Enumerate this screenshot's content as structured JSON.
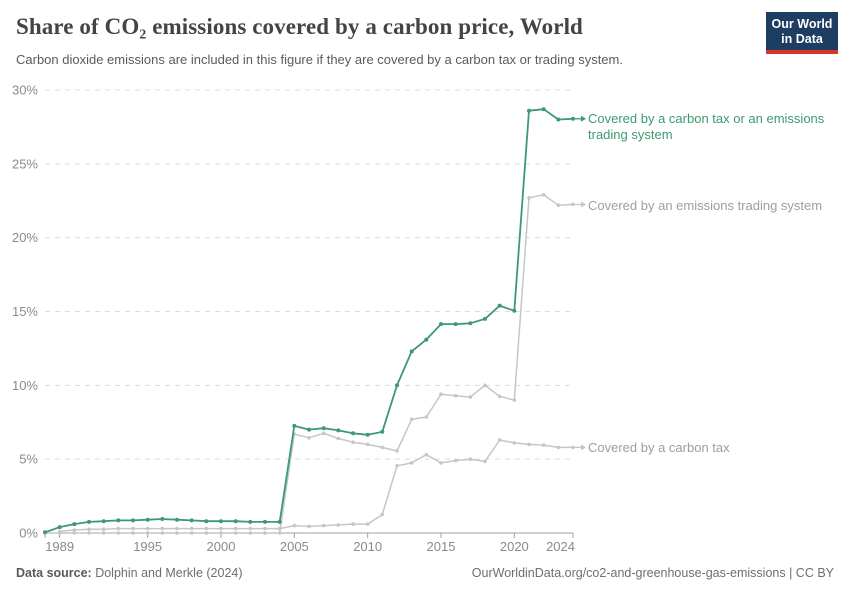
{
  "header": {
    "title": "Share of CO₂ emissions covered by a carbon price, World",
    "subtitle": "Carbon dioxide emissions are included in this figure if they are covered by a carbon tax or trading system.",
    "logo": {
      "line1": "Our World",
      "line2": "in Data",
      "bg_color": "#1d3d63",
      "accent_color": "#d7352c"
    }
  },
  "chart_data": {
    "type": "line",
    "title": "Share of CO₂ emissions covered by a carbon price, World",
    "x": [
      1988,
      1989,
      1990,
      1991,
      1992,
      1993,
      1994,
      1995,
      1996,
      1997,
      1998,
      1999,
      2000,
      2001,
      2002,
      2003,
      2004,
      2005,
      2006,
      2007,
      2008,
      2009,
      2010,
      2011,
      2012,
      2013,
      2014,
      2015,
      2016,
      2017,
      2018,
      2019,
      2020,
      2021,
      2022,
      2023,
      2024
    ],
    "series": [
      {
        "name": "Covered by a carbon tax or an emissions trading system",
        "color": "#3d9a70",
        "label_color": "#3d9a70",
        "values": [
          0.05,
          0.4,
          0.6,
          0.75,
          0.8,
          0.85,
          0.85,
          0.9,
          0.95,
          0.9,
          0.85,
          0.8,
          0.8,
          0.8,
          0.75,
          0.75,
          0.75,
          7.25,
          7.0,
          7.1,
          6.95,
          6.75,
          6.65,
          6.85,
          10.0,
          12.3,
          13.1,
          14.15,
          14.15,
          14.2,
          14.5,
          15.4,
          15.05,
          28.6,
          28.7,
          28.0,
          28.05
        ]
      },
      {
        "name": "Covered by an emissions trading system",
        "color": "#c6c6c6",
        "label_color": "#9e9e9e",
        "values": [
          0,
          0,
          0,
          0,
          0,
          0,
          0,
          0,
          0,
          0,
          0,
          0,
          0,
          0,
          0,
          0,
          0,
          6.7,
          6.45,
          6.75,
          6.4,
          6.15,
          6.0,
          5.8,
          5.55,
          7.7,
          7.85,
          9.4,
          9.3,
          9.2,
          10.0,
          9.25,
          9.0,
          22.7,
          22.9,
          22.2,
          22.25
        ]
      },
      {
        "name": "Covered by a carbon tax",
        "color": "#c6c6c6",
        "label_color": "#9e9e9e",
        "values": [
          null,
          0.1,
          0.2,
          0.25,
          0.25,
          0.3,
          0.3,
          0.3,
          0.3,
          0.3,
          0.3,
          0.3,
          0.3,
          0.3,
          0.3,
          0.3,
          0.3,
          0.5,
          0.45,
          0.5,
          0.55,
          0.6,
          0.6,
          1.25,
          4.55,
          4.75,
          5.3,
          4.75,
          4.9,
          5.0,
          4.85,
          6.3,
          6.1,
          6.0,
          5.95,
          5.8,
          5.8
        ]
      }
    ],
    "ylim": [
      0,
      30
    ],
    "yticks": [
      0,
      5,
      10,
      15,
      20,
      25,
      30
    ],
    "ytick_labels": [
      "0%",
      "5%",
      "10%",
      "15%",
      "20%",
      "25%",
      "30%"
    ],
    "xticks": [
      1989,
      1995,
      2000,
      2005,
      2010,
      2015,
      2020,
      2024
    ],
    "grid": "horizontal-dashed",
    "legend_position": "right-of-line-ends",
    "grid_color": "#dcdcdc",
    "axis_color": "#a0a0a0",
    "tick_label_color": "#8a8a8a"
  },
  "footer": {
    "source_label": "Data source:",
    "source_text": " Dolphin and Merkle (2024)",
    "right_text": "OurWorldinData.org/co2-and-greenhouse-gas-emissions | CC BY"
  }
}
